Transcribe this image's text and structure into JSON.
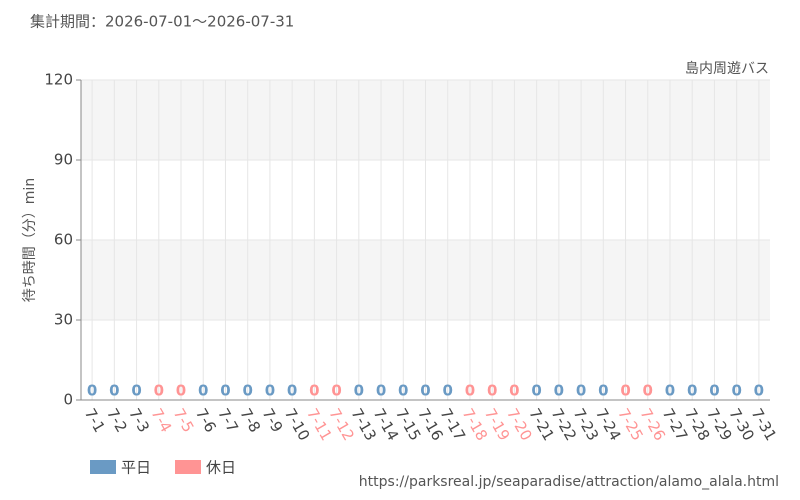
{
  "chart_data": {
    "type": "bar",
    "subtitle": "集計期間：2026-07-01～2026-07-31",
    "title": "島内周遊バス",
    "y_label": "待ち時間（分）min",
    "source": "https://parksreal.jp/seaparadise/attraction/alamo_alala.html",
    "categories": [
      "7-1",
      "7-2",
      "7-3",
      "7-4",
      "7-5",
      "7-6",
      "7-7",
      "7-8",
      "7-9",
      "7-10",
      "7-11",
      "7-12",
      "7-13",
      "7-14",
      "7-15",
      "7-16",
      "7-17",
      "7-18",
      "7-19",
      "7-20",
      "7-21",
      "7-22",
      "7-23",
      "7-24",
      "7-25",
      "7-26",
      "7-27",
      "7-28",
      "7-29",
      "7-30",
      "7-31"
    ],
    "series": [
      {
        "name": "平日",
        "color": "#6a9ac4",
        "values": [
          0,
          0,
          0,
          null,
          null,
          0,
          0,
          0,
          0,
          0,
          null,
          null,
          0,
          0,
          0,
          0,
          0,
          null,
          null,
          null,
          0,
          0,
          0,
          0,
          null,
          null,
          0,
          0,
          0,
          0,
          0
        ]
      },
      {
        "name": "休日",
        "color": "#ff9494",
        "values": [
          null,
          null,
          null,
          0,
          0,
          null,
          null,
          null,
          null,
          null,
          0,
          0,
          null,
          null,
          null,
          null,
          null,
          0,
          0,
          0,
          null,
          null,
          null,
          null,
          0,
          0,
          null,
          null,
          null,
          null,
          null
        ]
      }
    ],
    "ylim": [
      0,
      120
    ],
    "yticks": [
      0,
      30,
      60,
      90,
      120
    ],
    "grid": true,
    "legend": "bottom-left"
  }
}
